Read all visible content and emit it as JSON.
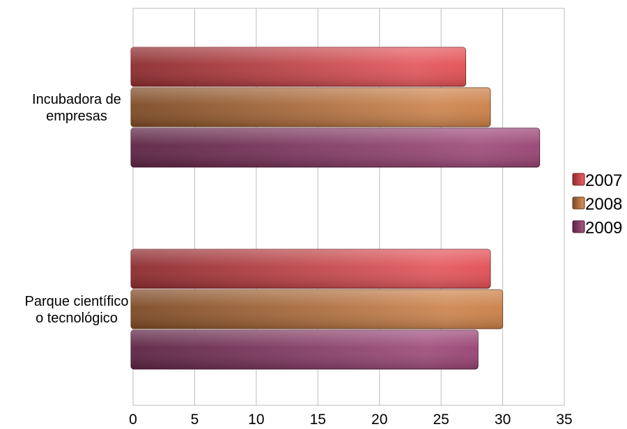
{
  "chart_data": {
    "type": "bar",
    "orientation": "horizontal",
    "categories": [
      "Incubadora de empresas",
      "Parque científico o tecnológico"
    ],
    "category_lines": [
      [
        "Incubadora de",
        "empresas"
      ],
      [
        "Parque científico",
        "o tecnológico"
      ]
    ],
    "series": [
      {
        "name": "2007",
        "values": [
          27,
          29
        ],
        "color": "#e0454a"
      },
      {
        "name": "2008",
        "values": [
          29,
          30
        ],
        "color": "#c8783c"
      },
      {
        "name": "2009",
        "values": [
          33,
          28
        ],
        "color": "#93386b"
      }
    ],
    "xlim": [
      0,
      35
    ],
    "xticks": [
      0,
      5,
      10,
      15,
      20,
      25,
      30,
      35
    ],
    "grid": true,
    "legend": "right"
  }
}
